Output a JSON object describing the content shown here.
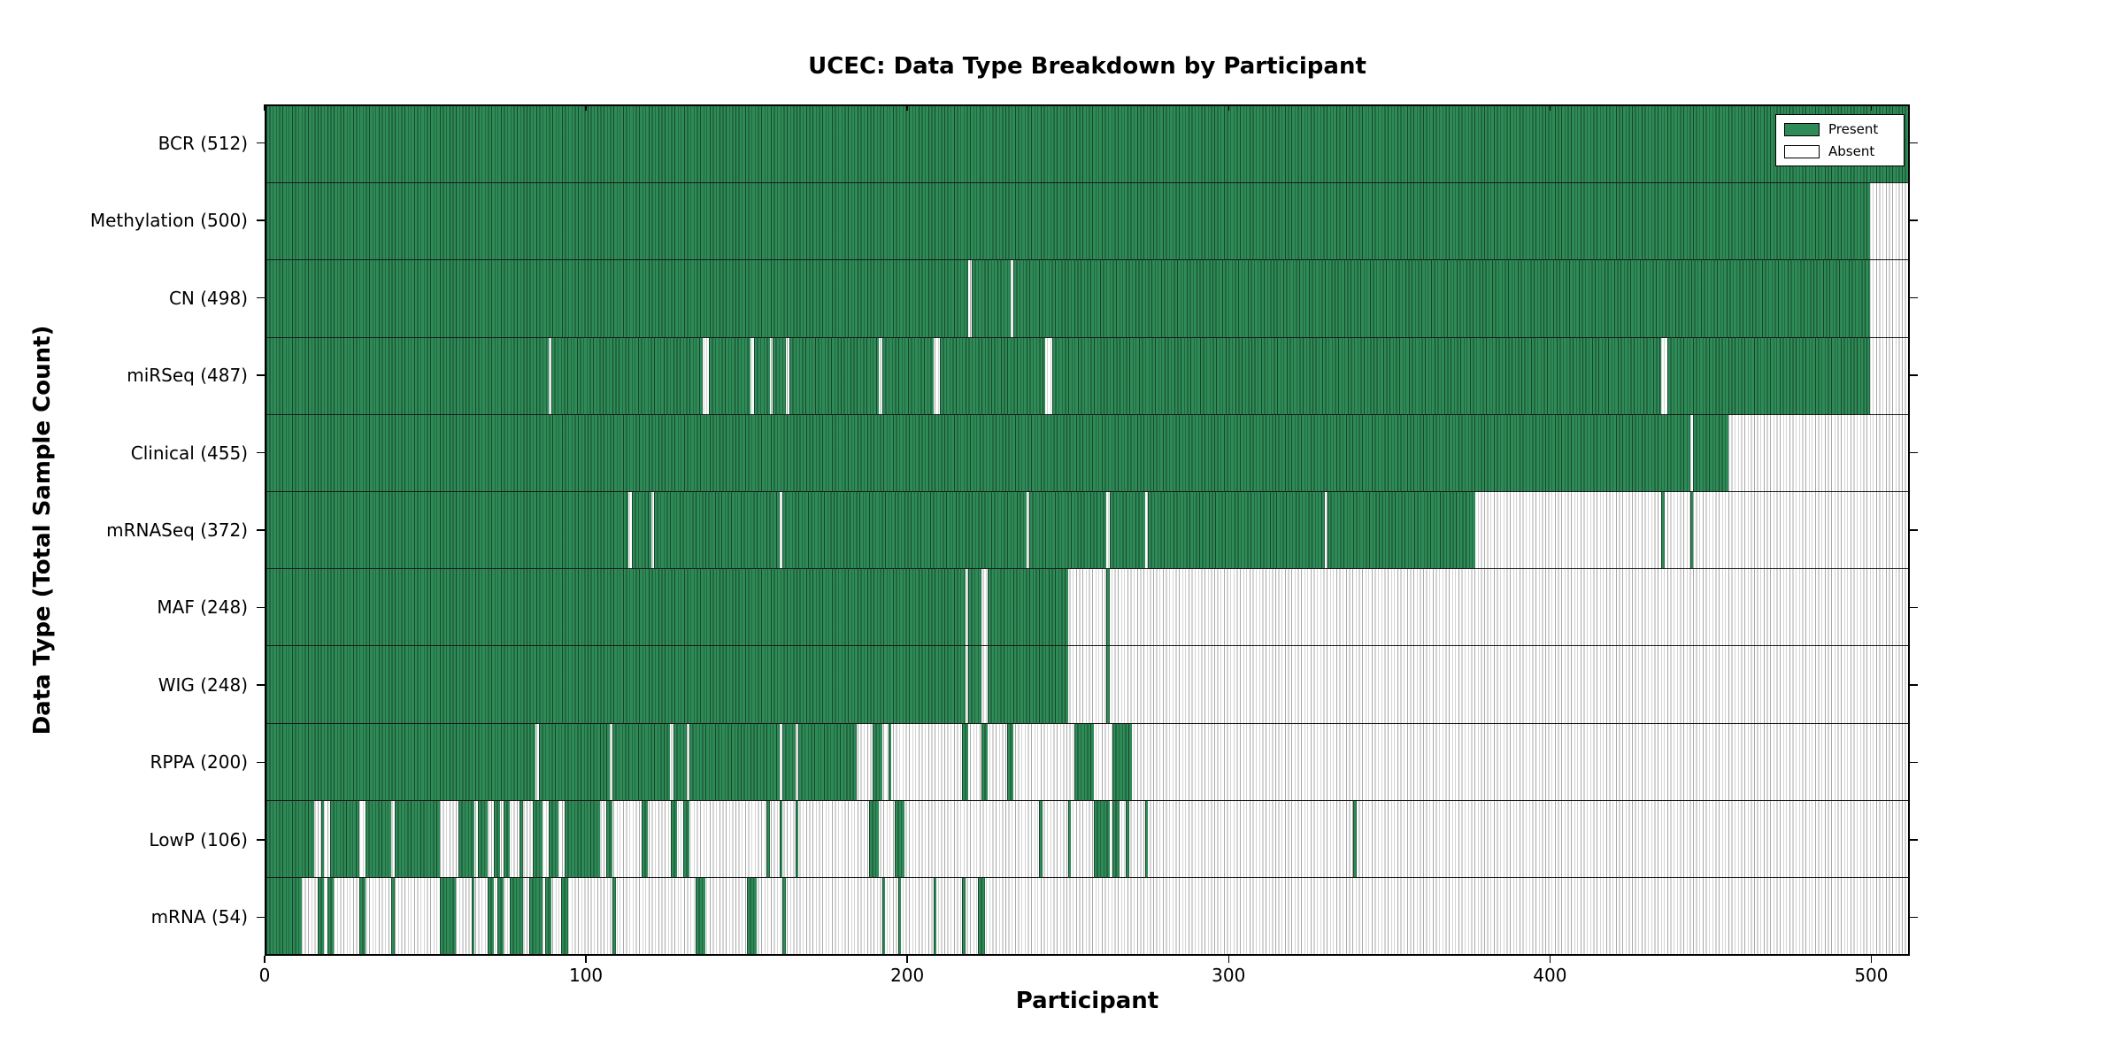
{
  "chart_data": {
    "type": "heatmap",
    "title": "UCEC: Data Type Breakdown by Participant",
    "xlabel": "Participant",
    "ylabel": "Data Type (Total Sample Count)",
    "x_range": [
      0,
      512
    ],
    "x_ticks": [
      0,
      100,
      200,
      300,
      400,
      500
    ],
    "grid": false,
    "legend_position": "upper right",
    "colors": {
      "present": "#2e8b57",
      "absent": "#ffffff",
      "cell_edge": "#000000"
    },
    "legend": [
      {
        "label": "Present",
        "color": "#2e8b57"
      },
      {
        "label": "Absent",
        "color": "#ffffff"
      }
    ],
    "rows": [
      {
        "label": "BCR (512)",
        "data_type": "bcr",
        "total": 512,
        "present_ranges": [
          [
            0,
            512
          ]
        ]
      },
      {
        "label": "Methylation (500)",
        "data_type": "methylation",
        "total": 500,
        "present_ranges": [
          [
            0,
            500
          ]
        ]
      },
      {
        "label": "CN (498)",
        "data_type": "cn",
        "total": 498,
        "present_ranges": [
          [
            0,
            219
          ],
          [
            220,
            232
          ],
          [
            233,
            500
          ]
        ]
      },
      {
        "label": "miRSeq (487)",
        "data_type": "mirseq",
        "total": 487,
        "present_ranges": [
          [
            0,
            88
          ],
          [
            89,
            136
          ],
          [
            138,
            151
          ],
          [
            152,
            157
          ],
          [
            158,
            162
          ],
          [
            163,
            191
          ],
          [
            192,
            208
          ],
          [
            210,
            243
          ],
          [
            245,
            435
          ],
          [
            437,
            500
          ]
        ]
      },
      {
        "label": "Clinical (455)",
        "data_type": "clinical",
        "total": 455,
        "present_ranges": [
          [
            0,
            444
          ],
          [
            445,
            456
          ]
        ]
      },
      {
        "label": "mRNASeq (372)",
        "data_type": "mrnaseq",
        "total": 372,
        "present_ranges": [
          [
            0,
            113
          ],
          [
            114,
            120
          ],
          [
            121,
            160
          ],
          [
            161,
            237
          ],
          [
            238,
            262
          ],
          [
            263,
            274
          ],
          [
            275,
            330
          ],
          [
            331,
            377
          ],
          [
            435,
            436
          ],
          [
            444,
            445
          ]
        ]
      },
      {
        "label": "MAF (248)",
        "data_type": "maf",
        "total": 248,
        "present_ranges": [
          [
            0,
            218
          ],
          [
            219,
            223
          ],
          [
            225,
            250
          ],
          [
            262,
            263
          ]
        ]
      },
      {
        "label": "WIG (248)",
        "data_type": "wig",
        "total": 248,
        "present_ranges": [
          [
            0,
            218
          ],
          [
            219,
            223
          ],
          [
            225,
            250
          ],
          [
            262,
            263
          ]
        ]
      },
      {
        "label": "RPPA (200)",
        "data_type": "rppa",
        "total": 200,
        "present_ranges": [
          [
            0,
            84
          ],
          [
            85,
            107
          ],
          [
            108,
            126
          ],
          [
            127,
            131
          ],
          [
            132,
            160
          ],
          [
            161,
            165
          ],
          [
            166,
            184
          ],
          [
            189,
            192
          ],
          [
            194,
            195
          ],
          [
            217,
            219
          ],
          [
            223,
            225
          ],
          [
            231,
            233
          ],
          [
            252,
            258
          ],
          [
            264,
            270
          ]
        ]
      },
      {
        "label": "LowP (106)",
        "data_type": "lowp",
        "total": 106,
        "present_ranges": [
          [
            0,
            15
          ],
          [
            17,
            18
          ],
          [
            20,
            29
          ],
          [
            31,
            39
          ],
          [
            40,
            54
          ],
          [
            60,
            65
          ],
          [
            66,
            69
          ],
          [
            71,
            73
          ],
          [
            74,
            76
          ],
          [
            79,
            80
          ],
          [
            83,
            86
          ],
          [
            88,
            91
          ],
          [
            93,
            104
          ],
          [
            106,
            108
          ],
          [
            117,
            119
          ],
          [
            126,
            128
          ],
          [
            130,
            132
          ],
          [
            156,
            157
          ],
          [
            160,
            161
          ],
          [
            165,
            166
          ],
          [
            188,
            191
          ],
          [
            196,
            199
          ],
          [
            241,
            242
          ],
          [
            250,
            251
          ],
          [
            258,
            263
          ],
          [
            264,
            266
          ],
          [
            268,
            269
          ],
          [
            274,
            275
          ],
          [
            339,
            340
          ]
        ]
      },
      {
        "label": "mRNA (54)",
        "data_type": "mrna",
        "total": 54,
        "present_ranges": [
          [
            0,
            11
          ],
          [
            16,
            18
          ],
          [
            19,
            21
          ],
          [
            29,
            31
          ],
          [
            39,
            40
          ],
          [
            54,
            59
          ],
          [
            64,
            65
          ],
          [
            69,
            71
          ],
          [
            72,
            74
          ],
          [
            76,
            80
          ],
          [
            82,
            86
          ],
          [
            87,
            89
          ],
          [
            92,
            94
          ],
          [
            108,
            109
          ],
          [
            134,
            137
          ],
          [
            150,
            153
          ],
          [
            161,
            162
          ],
          [
            192,
            193
          ],
          [
            197,
            198
          ],
          [
            208,
            209
          ],
          [
            217,
            218
          ],
          [
            222,
            224
          ]
        ]
      }
    ]
  }
}
